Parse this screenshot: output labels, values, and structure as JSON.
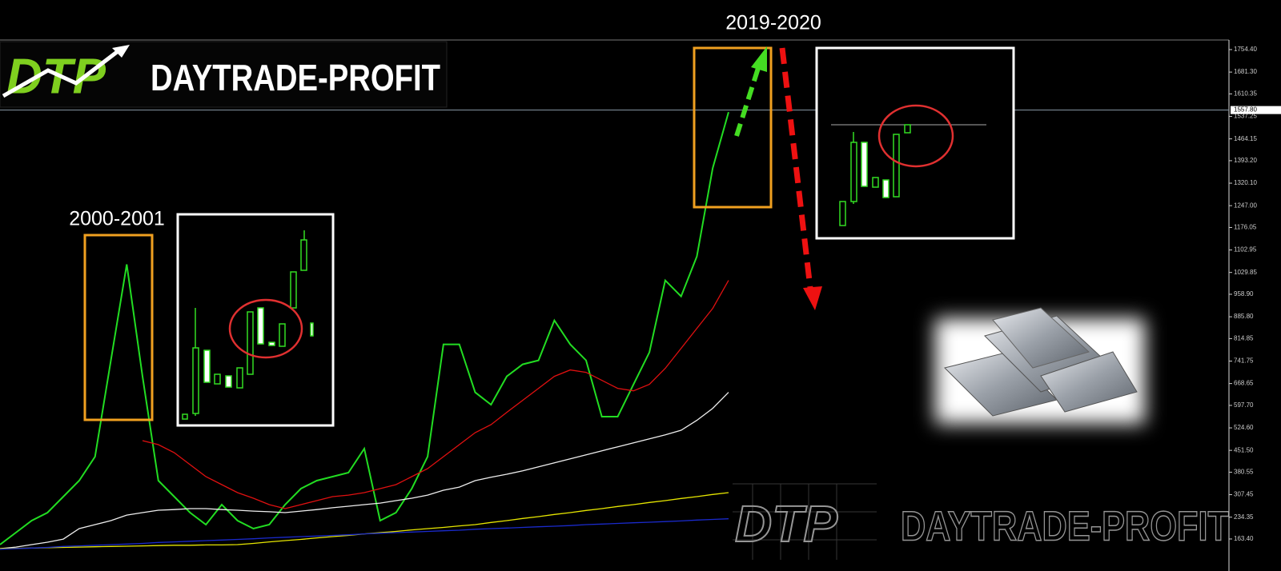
{
  "chart_data": {
    "type": "line",
    "annotations": [
      "2000-2001",
      "2019-2020"
    ],
    "logo": {
      "mark": "DTP",
      "text": "DAYTRADE-PROFIT"
    },
    "watermark": {
      "mark": "DTP",
      "text": "DAYTRADE-PROFIT"
    },
    "current_price": {
      "value": 1557.8,
      "label": "1557.80"
    },
    "series": [
      {
        "color": "#22dd22",
        "values": [
          145,
          184,
          223,
          249,
          301,
          353,
          431,
          744,
          1056,
          692,
          353,
          301,
          249,
          210,
          275,
          223,
          197,
          210,
          275,
          327,
          353,
          366,
          379,
          457,
          223,
          249,
          327,
          431,
          796,
          796,
          640,
          600,
          692,
          731,
          744,
          874,
          796,
          744,
          561,
          561,
          666,
          770,
          1004,
          952,
          1082,
          1369,
          1551
        ]
      },
      {
        "color": "#e01010",
        "values": [
          null,
          null,
          null,
          null,
          null,
          null,
          null,
          null,
          null,
          483,
          470,
          444,
          405,
          366,
          340,
          314,
          296,
          275,
          262,
          275,
          288,
          301,
          306,
          314,
          327,
          340,
          366,
          392,
          431,
          470,
          509,
          535,
          575,
          614,
          653,
          692,
          713,
          705,
          679,
          653,
          645,
          666,
          718,
          783,
          848,
          913,
          1004
        ]
      },
      {
        "color": "#eeeeee",
        "values": [
          132,
          137,
          145,
          153,
          163,
          197,
          210,
          223,
          241,
          249,
          257,
          259,
          262,
          262,
          259,
          257,
          254,
          252,
          249,
          254,
          259,
          265,
          270,
          275,
          280,
          288,
          296,
          306,
          322,
          332,
          353,
          364,
          374,
          385,
          398,
          411,
          424,
          437,
          450,
          463,
          476,
          489,
          502,
          517,
          549,
          588,
          640
        ]
      },
      {
        "color": "#e6e600",
        "values": [
          132,
          133,
          134,
          135,
          136,
          137,
          138,
          139,
          140,
          141,
          142,
          143,
          143,
          144,
          144,
          145,
          149,
          154,
          158,
          162,
          167,
          171,
          175,
          180,
          184,
          188,
          193,
          197,
          201,
          206,
          210,
          217,
          223,
          230,
          236,
          243,
          249,
          256,
          262,
          269,
          275,
          282,
          288,
          295,
          301,
          308,
          314
        ]
      },
      {
        "color": "#1a2acc",
        "values": [
          130,
          132,
          134,
          136,
          139,
          141,
          143,
          145,
          147,
          149,
          152,
          154,
          156,
          158,
          160,
          162,
          164,
          167,
          169,
          171,
          173,
          175,
          177,
          180,
          182,
          184,
          186,
          188,
          190,
          192,
          195,
          197,
          199,
          201,
          203,
          205,
          207,
          210,
          212,
          214,
          216,
          218,
          220,
          222,
          225,
          227,
          229
        ]
      }
    ],
    "ylim": [
      93.1,
      1785.6
    ],
    "yticks": [
      {
        "value": 1754.4,
        "label": "1754.40"
      },
      {
        "value": 1681.3,
        "label": "1681.30"
      },
      {
        "value": 1610.35,
        "label": "1610.35"
      },
      {
        "value": 1537.25,
        "label": "1537.25"
      },
      {
        "value": 1464.15,
        "label": "1464.15"
      },
      {
        "value": 1393.2,
        "label": "1393.20"
      },
      {
        "value": 1320.1,
        "label": "1320.10"
      },
      {
        "value": 1247,
        "label": "1247.00"
      },
      {
        "value": 1176.05,
        "label": "1176.05"
      },
      {
        "value": 1102.95,
        "label": "1102.95"
      },
      {
        "value": 1029.85,
        "label": "1029.85"
      },
      {
        "value": 958.9,
        "label": "958.90"
      },
      {
        "value": 885.8,
        "label": "885.80"
      },
      {
        "value": 814.85,
        "label": "814.85"
      },
      {
        "value": 741.75,
        "label": "741.75"
      },
      {
        "value": 668.65,
        "label": "668.65"
      },
      {
        "value": 597.7,
        "label": "597.70"
      },
      {
        "value": 524.6,
        "label": "524.60"
      },
      {
        "value": 451.5,
        "label": "451.50"
      },
      {
        "value": 380.55,
        "label": "380.55"
      },
      {
        "value": 307.45,
        "label": "307.45"
      },
      {
        "value": 234.35,
        "label": "234.35"
      },
      {
        "value": 163.4,
        "label": "163.40"
      }
    ]
  }
}
